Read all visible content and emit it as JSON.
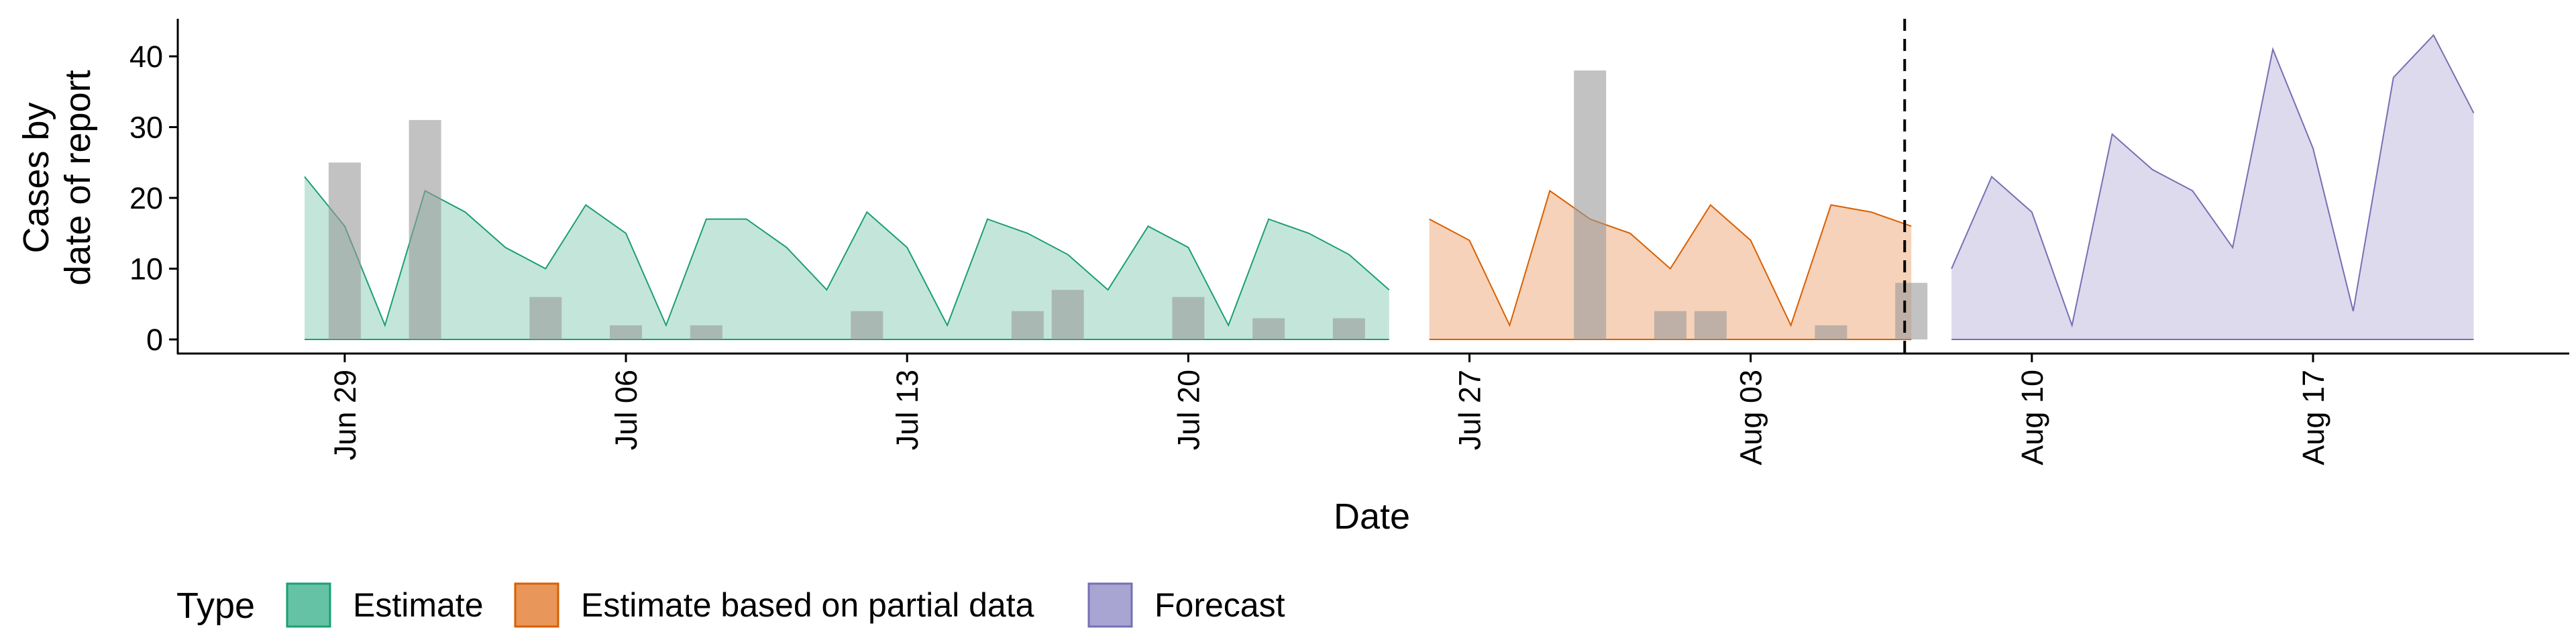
{
  "chart_data": {
    "type": "area",
    "xlabel": "Date",
    "ylabel": [
      "Cases by",
      "date of report"
    ],
    "ylim": [
      -2,
      45
    ],
    "yticks": [
      0,
      10,
      20,
      30,
      40
    ],
    "xlim": [
      "2020-06-25",
      "2020-08-24"
    ],
    "xticks": [
      {
        "date": "2020-06-29",
        "label": "Jun 29"
      },
      {
        "date": "2020-07-06",
        "label": "Jul 06"
      },
      {
        "date": "2020-07-13",
        "label": "Jul 13"
      },
      {
        "date": "2020-07-20",
        "label": "Jul 20"
      },
      {
        "date": "2020-07-27",
        "label": "Jul 27"
      },
      {
        "date": "2020-08-03",
        "label": "Aug 03"
      },
      {
        "date": "2020-08-10",
        "label": "Aug 10"
      },
      {
        "date": "2020-08-17",
        "label": "Aug 17"
      }
    ],
    "grid": false,
    "legend": {
      "title": "Type",
      "position": "bottom",
      "entries": [
        {
          "label": "Estimate",
          "fill": "#66c2a5",
          "stroke": "#1b9e77"
        },
        {
          "label": "Estimate based on partial data",
          "fill": "#e8965a",
          "stroke": "#d95f02"
        },
        {
          "label": "Forecast",
          "fill": "#a9a5d2",
          "stroke": "#7570b3"
        }
      ]
    },
    "vline": {
      "date": "2020-08-07",
      "style": "dashed"
    },
    "series": [
      {
        "name": "Estimate",
        "fill": "#c4e6da",
        "stroke": "#1b9e77",
        "points": [
          [
            "2020-06-28",
            23
          ],
          [
            "2020-06-29",
            16
          ],
          [
            "2020-06-30",
            2
          ],
          [
            "2020-07-01",
            21
          ],
          [
            "2020-07-02",
            18
          ],
          [
            "2020-07-03",
            13
          ],
          [
            "2020-07-04",
            10
          ],
          [
            "2020-07-05",
            19
          ],
          [
            "2020-07-06",
            15
          ],
          [
            "2020-07-07",
            2
          ],
          [
            "2020-07-08",
            17
          ],
          [
            "2020-07-09",
            17
          ],
          [
            "2020-07-10",
            13
          ],
          [
            "2020-07-11",
            7
          ],
          [
            "2020-07-12",
            18
          ],
          [
            "2020-07-13",
            13
          ],
          [
            "2020-07-14",
            2
          ],
          [
            "2020-07-15",
            17
          ],
          [
            "2020-07-16",
            15
          ],
          [
            "2020-07-17",
            12
          ],
          [
            "2020-07-18",
            7
          ],
          [
            "2020-07-19",
            16
          ],
          [
            "2020-07-20",
            13
          ],
          [
            "2020-07-21",
            2
          ],
          [
            "2020-07-22",
            17
          ],
          [
            "2020-07-23",
            15
          ],
          [
            "2020-07-24",
            12
          ],
          [
            "2020-07-25",
            7
          ]
        ]
      },
      {
        "name": "Estimate based on partial data",
        "fill": "#f5d2b9",
        "stroke": "#d95f02",
        "points": [
          [
            "2020-07-26",
            17
          ],
          [
            "2020-07-27",
            14
          ],
          [
            "2020-07-28",
            2
          ],
          [
            "2020-07-29",
            21
          ],
          [
            "2020-07-30",
            17
          ],
          [
            "2020-07-31",
            15
          ],
          [
            "2020-08-01",
            10
          ],
          [
            "2020-08-02",
            19
          ],
          [
            "2020-08-03",
            14
          ],
          [
            "2020-08-04",
            2
          ],
          [
            "2020-08-05",
            19
          ],
          [
            "2020-08-06",
            18
          ],
          [
            "2020-08-07",
            16
          ]
        ]
      },
      {
        "name": "Forecast",
        "fill": "#dcdaec",
        "stroke": "#7570b3",
        "points": [
          [
            "2020-08-08",
            10
          ],
          [
            "2020-08-09",
            23
          ],
          [
            "2020-08-10",
            18
          ],
          [
            "2020-08-11",
            2
          ],
          [
            "2020-08-12",
            29
          ],
          [
            "2020-08-13",
            24
          ],
          [
            "2020-08-14",
            21
          ],
          [
            "2020-08-15",
            13
          ],
          [
            "2020-08-16",
            41
          ],
          [
            "2020-08-17",
            27
          ],
          [
            "2020-08-18",
            4
          ],
          [
            "2020-08-19",
            37
          ],
          [
            "2020-08-20",
            43
          ],
          [
            "2020-08-21",
            32
          ]
        ]
      }
    ],
    "bars": {
      "color": "#999999",
      "values": [
        [
          "2020-06-29",
          25
        ],
        [
          "2020-07-01",
          31
        ],
        [
          "2020-07-04",
          6
        ],
        [
          "2020-07-06",
          2
        ],
        [
          "2020-07-08",
          2
        ],
        [
          "2020-07-12",
          4
        ],
        [
          "2020-07-16",
          4
        ],
        [
          "2020-07-17",
          7
        ],
        [
          "2020-07-20",
          6
        ],
        [
          "2020-07-22",
          3
        ],
        [
          "2020-07-24",
          3
        ],
        [
          "2020-07-30",
          38
        ],
        [
          "2020-08-01",
          4
        ],
        [
          "2020-08-02",
          4
        ],
        [
          "2020-08-05",
          2
        ],
        [
          "2020-08-07",
          8
        ]
      ]
    }
  }
}
